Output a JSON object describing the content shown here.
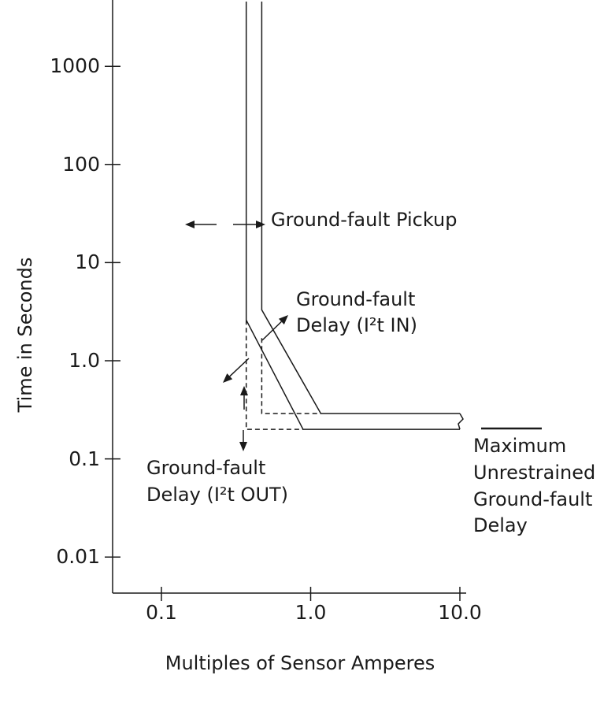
{
  "chart_data": {
    "type": "line",
    "title": "",
    "xlabel": "Multiples of Sensor Amperes",
    "ylabel": "Time in Seconds",
    "x_scale": "log",
    "y_scale": "log",
    "xlim": [
      0.05,
      12
    ],
    "ylim": [
      0.003,
      20000
    ],
    "x_ticks": [
      {
        "value": 0.1,
        "label": "0.1"
      },
      {
        "value": 1.0,
        "label": "1.0"
      },
      {
        "value": 10.0,
        "label": "10.0"
      }
    ],
    "y_ticks": [
      {
        "value": 1000,
        "label": "1000"
      },
      {
        "value": 100,
        "label": "100"
      },
      {
        "value": 10,
        "label": "10"
      },
      {
        "value": 1.0,
        "label": "1.0"
      },
      {
        "value": 0.1,
        "label": "0.1"
      },
      {
        "value": 0.01,
        "label": "0.01"
      }
    ],
    "grid": false,
    "series": [
      {
        "key": "left-bound",
        "style": "solid",
        "x": [
          0.37,
          0.37,
          0.89,
          10.0
        ],
        "y": [
          20000,
          2.6,
          0.2,
          0.2
        ]
      },
      {
        "key": "right-bound",
        "style": "solid",
        "x": [
          0.47,
          0.47,
          1.17,
          10.0
        ],
        "y": [
          20000,
          3.3,
          0.29,
          0.29
        ]
      },
      {
        "key": "delay-out-dashed",
        "style": "dashed",
        "x": [
          0.37,
          0.37,
          0.89
        ],
        "y": [
          2.6,
          0.2,
          0.2
        ]
      },
      {
        "key": "delay-in-dashed",
        "style": "dashed",
        "x": [
          0.47,
          0.47,
          1.17
        ],
        "y": [
          1.7,
          0.29,
          0.29
        ]
      }
    ],
    "annotations": {
      "pickup": "Ground-fault Pickup",
      "delay_in_line1": "Ground-fault",
      "delay_in_line2": "Delay (I²t IN)",
      "delay_out_line1": "Ground-fault",
      "delay_out_line2": "Delay (I²t OUT)",
      "max_line1": "Maximum",
      "max_line2": "Unrestrained",
      "max_line3": "Ground-fault",
      "max_line4": "Delay"
    }
  },
  "colors": {
    "line": "#1a1a1a",
    "background": "#ffffff"
  }
}
